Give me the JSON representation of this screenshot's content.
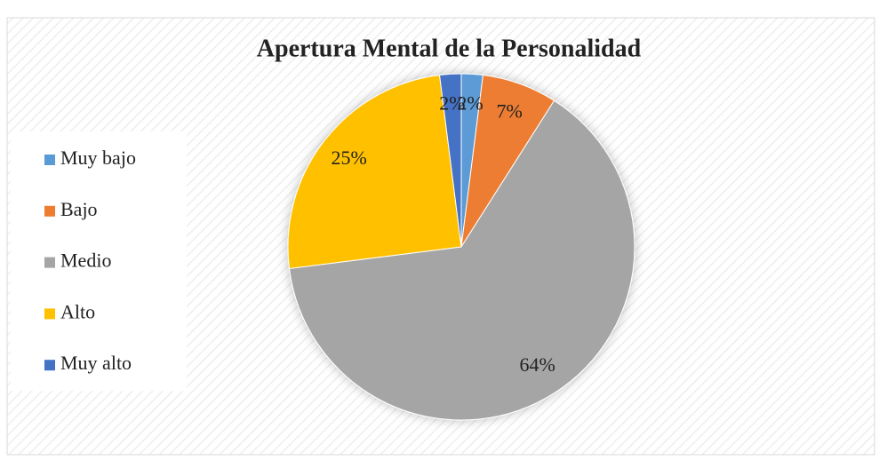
{
  "chart_data": {
    "type": "pie",
    "title": "Apertura Mental de la Personalidad",
    "categories": [
      "Muy bajo",
      "Bajo",
      "Medio",
      "Alto",
      "Muy alto"
    ],
    "values": [
      2,
      7,
      64,
      25,
      2
    ],
    "value_labels": [
      "2%",
      "7%",
      "64%",
      "25%",
      "2%"
    ],
    "colors": [
      "#5b9bd5",
      "#ed7d31",
      "#a5a5a5",
      "#ffc000",
      "#4472c4"
    ],
    "legend": "left"
  }
}
